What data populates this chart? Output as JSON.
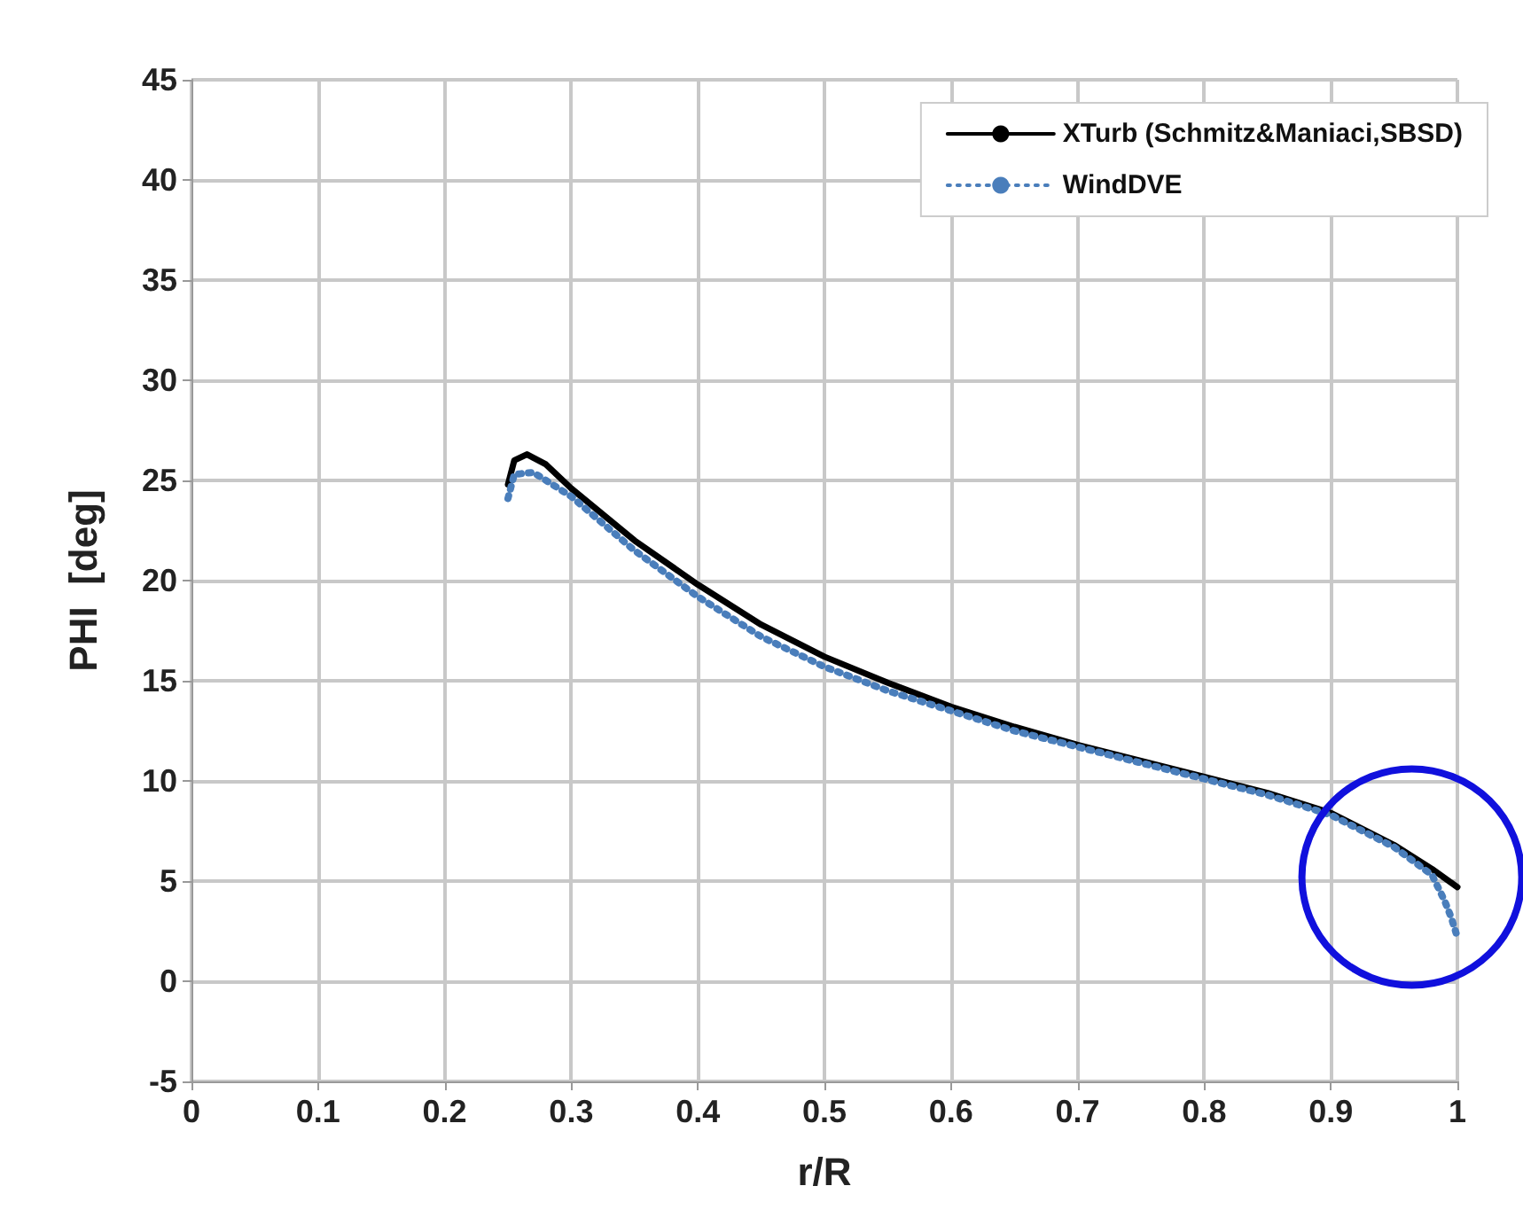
{
  "chart_data": {
    "type": "line",
    "xlabel": "r/R",
    "ylabel": "PHI  [deg]",
    "xlim": [
      0,
      1
    ],
    "xticks": [
      0,
      0.1,
      0.2,
      0.3,
      0.4,
      0.5,
      0.6,
      0.7,
      0.8,
      0.9,
      1
    ],
    "ylim": [
      -5,
      45
    ],
    "yticks": [
      -5,
      0,
      5,
      10,
      15,
      20,
      25,
      30,
      35,
      40,
      45
    ],
    "grid": true,
    "legend": "top right",
    "series": [
      {
        "name": "XTurb (Schmitz&Maniaci,SBSD)",
        "color": "#000000",
        "line_style": "solid",
        "x": [
          0.25,
          0.255,
          0.265,
          0.28,
          0.3,
          0.35,
          0.4,
          0.45,
          0.5,
          0.55,
          0.6,
          0.65,
          0.7,
          0.75,
          0.8,
          0.85,
          0.9,
          0.95,
          0.98,
          1.0
        ],
        "values": [
          24.8,
          26.0,
          26.3,
          25.8,
          24.6,
          22.0,
          19.8,
          17.8,
          16.2,
          14.9,
          13.7,
          12.7,
          11.8,
          11.0,
          10.2,
          9.4,
          8.4,
          6.8,
          5.6,
          4.7
        ]
      },
      {
        "name": "WindDVE",
        "color": "#4a7ebb",
        "line_style": "dotted",
        "x": [
          0.25,
          0.255,
          0.27,
          0.3,
          0.35,
          0.4,
          0.45,
          0.5,
          0.55,
          0.6,
          0.65,
          0.7,
          0.75,
          0.8,
          0.85,
          0.9,
          0.95,
          0.98,
          0.99,
          0.995,
          1.0
        ],
        "values": [
          24.1,
          25.3,
          25.4,
          24.2,
          21.5,
          19.2,
          17.2,
          15.7,
          14.5,
          13.5,
          12.5,
          11.7,
          10.9,
          10.1,
          9.3,
          8.3,
          6.7,
          5.3,
          4.0,
          3.2,
          2.2
        ]
      }
    ]
  }
}
